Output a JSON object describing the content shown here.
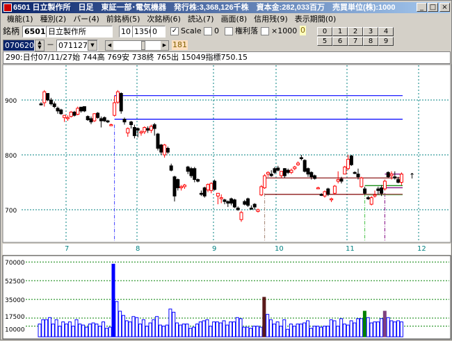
{
  "window": {
    "title": "6501 日立製作所　日足　東証一部･電気機器　発行株:3,368,126千株　資本金:282,033百万　売買単位(株):1000",
    "minimize": "_",
    "maximize": "□",
    "close": "×"
  },
  "menu": [
    "機能(1)",
    "種別(2)",
    "バー(4)",
    "前銘柄(5)",
    "次銘柄(6)",
    "読込(7)",
    "画面(8)",
    "信用残(9)",
    "表示期間(0)"
  ],
  "toolbar": {
    "code_label": "銘柄",
    "code": "6501",
    "name": "日立製作所",
    "field1": "10",
    "field2": "1350",
    "field3": "0",
    "scale_label": "Scale",
    "scale_checked": true,
    "zero_label": "0",
    "kenri_label": "権利落",
    "x1000_label": "×1000",
    "badge": "0",
    "date_from": "070620",
    "dash": "－",
    "date_to": "071127",
    "slider_value": "181",
    "slider_fraction": 0.62,
    "num_buttons": [
      "0",
      "1",
      "2",
      "3",
      "4",
      "5",
      "6",
      "7",
      "8",
      "9"
    ]
  },
  "info_line": "290:日付07/11/27始 744高 769安 738終 765出 15049指標750.15",
  "colors": {
    "up": "#ff0000",
    "down": "#000000",
    "grid": "#008080",
    "vol": "#0000ff"
  },
  "price_chart": {
    "y_ticks": [
      "900",
      "800",
      "700"
    ],
    "x_labels": [
      "7",
      "8",
      "9",
      "10",
      "11",
      "12"
    ],
    "arrow": "↑",
    "ohlc": [
      [
        893,
        896,
        890,
        892
      ],
      [
        895,
        918,
        888,
        915
      ],
      [
        912,
        912,
        898,
        900
      ],
      [
        900,
        904,
        890,
        893
      ],
      [
        893,
        897,
        885,
        888
      ],
      [
        885,
        888,
        875,
        880
      ],
      [
        882,
        884,
        873,
        875
      ],
      [
        868,
        873,
        860,
        872
      ],
      [
        866,
        872,
        862,
        868
      ],
      [
        870,
        880,
        868,
        878
      ],
      [
        878,
        880,
        870,
        872
      ],
      [
        874,
        888,
        872,
        885
      ],
      [
        887,
        887,
        877,
        880
      ],
      [
        888,
        888,
        878,
        880
      ],
      [
        870,
        872,
        862,
        864
      ],
      [
        866,
        870,
        856,
        860
      ],
      [
        862,
        876,
        860,
        875
      ],
      [
        876,
        878,
        866,
        868
      ],
      [
        866,
        870,
        850,
        862
      ],
      [
        868,
        870,
        860,
        862
      ],
      [
        862,
        864,
        858,
        860
      ],
      [
        854,
        857,
        853,
        855
      ],
      [
        872,
        908,
        870,
        895
      ],
      [
        896,
        918,
        893,
        915
      ],
      [
        912,
        914,
        875,
        880
      ],
      [
        865,
        868,
        855,
        860
      ],
      [
        840,
        850,
        833,
        848
      ],
      [
        860,
        862,
        848,
        855
      ],
      [
        850,
        855,
        830,
        835
      ],
      [
        848,
        850,
        832,
        845
      ],
      [
        840,
        845,
        835,
        842
      ],
      [
        842,
        852,
        838,
        850
      ],
      [
        848,
        852,
        840,
        845
      ],
      [
        845,
        855,
        840,
        852
      ],
      [
        855,
        858,
        835,
        848
      ],
      [
        838,
        840,
        808,
        812
      ],
      [
        818,
        820,
        800,
        805
      ],
      [
        800,
        820,
        795,
        818
      ],
      [
        812,
        815,
        802,
        805
      ],
      [
        780,
        784,
        770,
        772
      ],
      [
        760,
        762,
        715,
        725
      ],
      [
        755,
        757,
        735,
        740
      ],
      [
        740,
        745,
        735,
        742
      ],
      [
        742,
        747,
        738,
        745
      ],
      [
        778,
        780,
        765,
        770
      ],
      [
        775,
        778,
        758,
        762
      ],
      [
        775,
        778,
        750,
        755
      ],
      [
        755,
        757,
        750,
        752
      ],
      [
        730,
        735,
        725,
        728
      ],
      [
        740,
        742,
        722,
        725
      ],
      [
        736,
        748,
        732,
        746
      ],
      [
        735,
        750,
        730,
        748
      ],
      [
        752,
        755,
        735,
        737
      ],
      [
        725,
        730,
        710,
        730
      ],
      [
        720,
        728,
        712,
        722
      ],
      [
        718,
        720,
        710,
        715
      ],
      [
        715,
        717,
        705,
        712
      ],
      [
        720,
        722,
        708,
        712
      ],
      [
        718,
        720,
        703,
        705
      ],
      [
        703,
        706,
        698,
        700
      ],
      [
        682,
        698,
        678,
        695
      ],
      [
        715,
        718,
        708,
        710
      ],
      [
        720,
        722,
        705,
        708
      ],
      [
        703,
        708,
        700,
        702
      ],
      [
        710,
        712,
        700,
        705
      ],
      [
        697,
        702,
        695,
        700
      ],
      [
        727,
        745,
        725,
        742
      ],
      [
        740,
        765,
        738,
        762
      ],
      [
        765,
        770,
        760,
        768
      ],
      [
        765,
        772,
        760,
        762
      ],
      [
        775,
        778,
        765,
        768
      ],
      [
        776,
        780,
        770,
        772
      ],
      [
        762,
        770,
        758,
        770
      ],
      [
        775,
        776,
        758,
        762
      ],
      [
        772,
        775,
        765,
        768
      ],
      [
        768,
        775,
        765,
        772
      ],
      [
        775,
        780,
        772,
        778
      ],
      [
        782,
        788,
        780,
        785
      ],
      [
        795,
        800,
        790,
        793
      ],
      [
        790,
        792,
        768,
        770
      ],
      [
        775,
        777,
        760,
        765
      ],
      [
        768,
        770,
        755,
        760
      ],
      [
        762,
        764,
        755,
        757
      ],
      [
        740,
        742,
        738,
        740
      ],
      [
        728,
        730,
        725,
        727
      ],
      [
        725,
        735,
        722,
        733
      ],
      [
        738,
        740,
        725,
        728
      ],
      [
        718,
        722,
        714,
        720
      ],
      [
        730,
        745,
        728,
        743
      ],
      [
        752,
        770,
        748,
        755
      ],
      [
        756,
        760,
        748,
        752
      ],
      [
        765,
        780,
        765,
        778
      ],
      [
        775,
        800,
        772,
        792
      ],
      [
        798,
        800,
        780,
        782
      ],
      [
        768,
        770,
        765,
        767
      ],
      [
        765,
        775,
        755,
        760
      ],
      [
        742,
        760,
        740,
        758
      ],
      [
        738,
        742,
        728,
        730
      ],
      [
        722,
        725,
        718,
        720
      ],
      [
        710,
        725,
        708,
        722
      ],
      [
        725,
        735,
        722,
        727
      ],
      [
        738,
        742,
        728,
        735
      ],
      [
        740,
        745,
        725,
        730
      ],
      [
        738,
        755,
        735,
        752
      ],
      [
        768,
        770,
        758,
        760
      ],
      [
        762,
        770,
        755,
        765
      ],
      [
        760,
        770,
        755,
        758
      ],
      [
        755,
        760,
        748,
        750
      ],
      [
        750,
        768,
        745,
        765
      ]
    ],
    "hlines": [
      {
        "price": 908,
        "from": 22,
        "color": "#0000ff"
      },
      {
        "price": 865,
        "from": 22,
        "color": "#0000ff"
      },
      {
        "price": 758,
        "from": 67,
        "color": "#800000"
      },
      {
        "price": 728,
        "from": 67,
        "color": "#800000"
      },
      {
        "price": 744,
        "from": 97,
        "color": "#008000"
      },
      {
        "price": 727,
        "from": 97,
        "color": "#80c080"
      },
      {
        "price": 765,
        "from": 103,
        "color": "#800080"
      },
      {
        "price": 740,
        "from": 103,
        "color": "#800080"
      }
    ],
    "markers": [
      {
        "index": 22,
        "color": "#4040ff"
      },
      {
        "index": 67,
        "color": "#a08070"
      },
      {
        "index": 97,
        "color": "#40c040"
      },
      {
        "index": 103,
        "color": "#800080"
      }
    ]
  },
  "volume_chart": {
    "y_ticks": [
      "70000",
      "52500",
      "35000",
      "17500",
      "10000"
    ],
    "values": [
      12,
      16,
      16,
      18,
      12,
      16,
      10,
      14,
      12,
      14,
      10,
      16,
      12,
      11,
      9,
      12,
      13,
      12,
      10,
      14,
      8,
      9,
      68,
      33,
      24,
      20,
      15,
      14,
      19,
      18,
      12,
      16,
      10,
      13,
      16,
      19,
      11,
      10,
      11,
      26,
      23,
      13,
      11,
      12,
      12,
      8,
      9,
      12,
      14,
      15,
      16,
      10,
      14,
      14,
      13,
      15,
      11,
      14,
      14,
      18,
      17,
      9,
      9,
      8,
      10,
      10,
      9,
      37,
      21,
      16,
      12,
      14,
      10,
      16,
      7,
      12,
      10,
      12,
      12,
      13,
      15,
      8,
      10,
      10,
      9,
      10,
      10,
      16,
      15,
      10,
      17,
      12,
      11,
      15,
      13,
      17,
      17,
      24,
      18,
      13,
      14,
      14,
      17,
      24,
      18,
      15,
      14,
      15,
      14
    ],
    "highlights": [
      {
        "index": 22,
        "color": "#0000ff"
      },
      {
        "index": 67,
        "color": "#5a1a1a"
      },
      {
        "index": 97,
        "color": "#008000"
      },
      {
        "index": 103,
        "color": "#804080"
      }
    ]
  }
}
